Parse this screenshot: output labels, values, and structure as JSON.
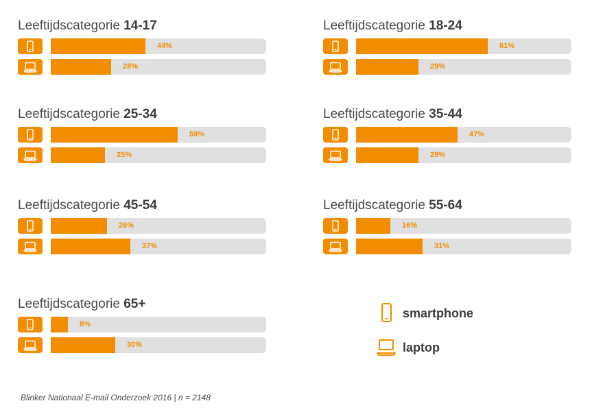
{
  "chart_data": {
    "type": "bar",
    "orientation": "horizontal",
    "category_prefix": "Leeftijdscategorie",
    "series": [
      {
        "name": "smartphone",
        "icon": "smartphone-icon"
      },
      {
        "name": "laptop",
        "icon": "laptop-icon"
      }
    ],
    "groups": [
      {
        "age": "14-17",
        "smartphone": 44,
        "laptop": 28,
        "smartphone_label": "44%",
        "laptop_label": "28%"
      },
      {
        "age": "18-24",
        "smartphone": 61,
        "laptop": 29,
        "smartphone_label": "61%",
        "laptop_label": "29%"
      },
      {
        "age": "25-34",
        "smartphone": 59,
        "laptop": 25,
        "smartphone_label": "59%",
        "laptop_label": "25%"
      },
      {
        "age": "35-44",
        "smartphone": 47,
        "laptop": 29,
        "smartphone_label": "47%",
        "laptop_label": "29%"
      },
      {
        "age": "45-54",
        "smartphone": 26,
        "laptop": 37,
        "smartphone_label": "26%",
        "laptop_label": "37%"
      },
      {
        "age": "55-64",
        "smartphone": 16,
        "laptop": 31,
        "smartphone_label": "16%",
        "laptop_label": "31%"
      },
      {
        "age": "65+",
        "smartphone": 8,
        "laptop": 30,
        "smartphone_label": "8%",
        "laptop_label": "30%"
      }
    ],
    "xlim": [
      0,
      100
    ],
    "colors": {
      "bar": "#f28c00",
      "track": "#e0e0e0",
      "label": "#f28c00",
      "icon_box": "#f28c00"
    },
    "legend": {
      "position": "bottom-right",
      "items": [
        "smartphone",
        "laptop"
      ]
    }
  },
  "source": "Blinker Nationaal E-mail Onderzoek 2016 | n = 2148"
}
